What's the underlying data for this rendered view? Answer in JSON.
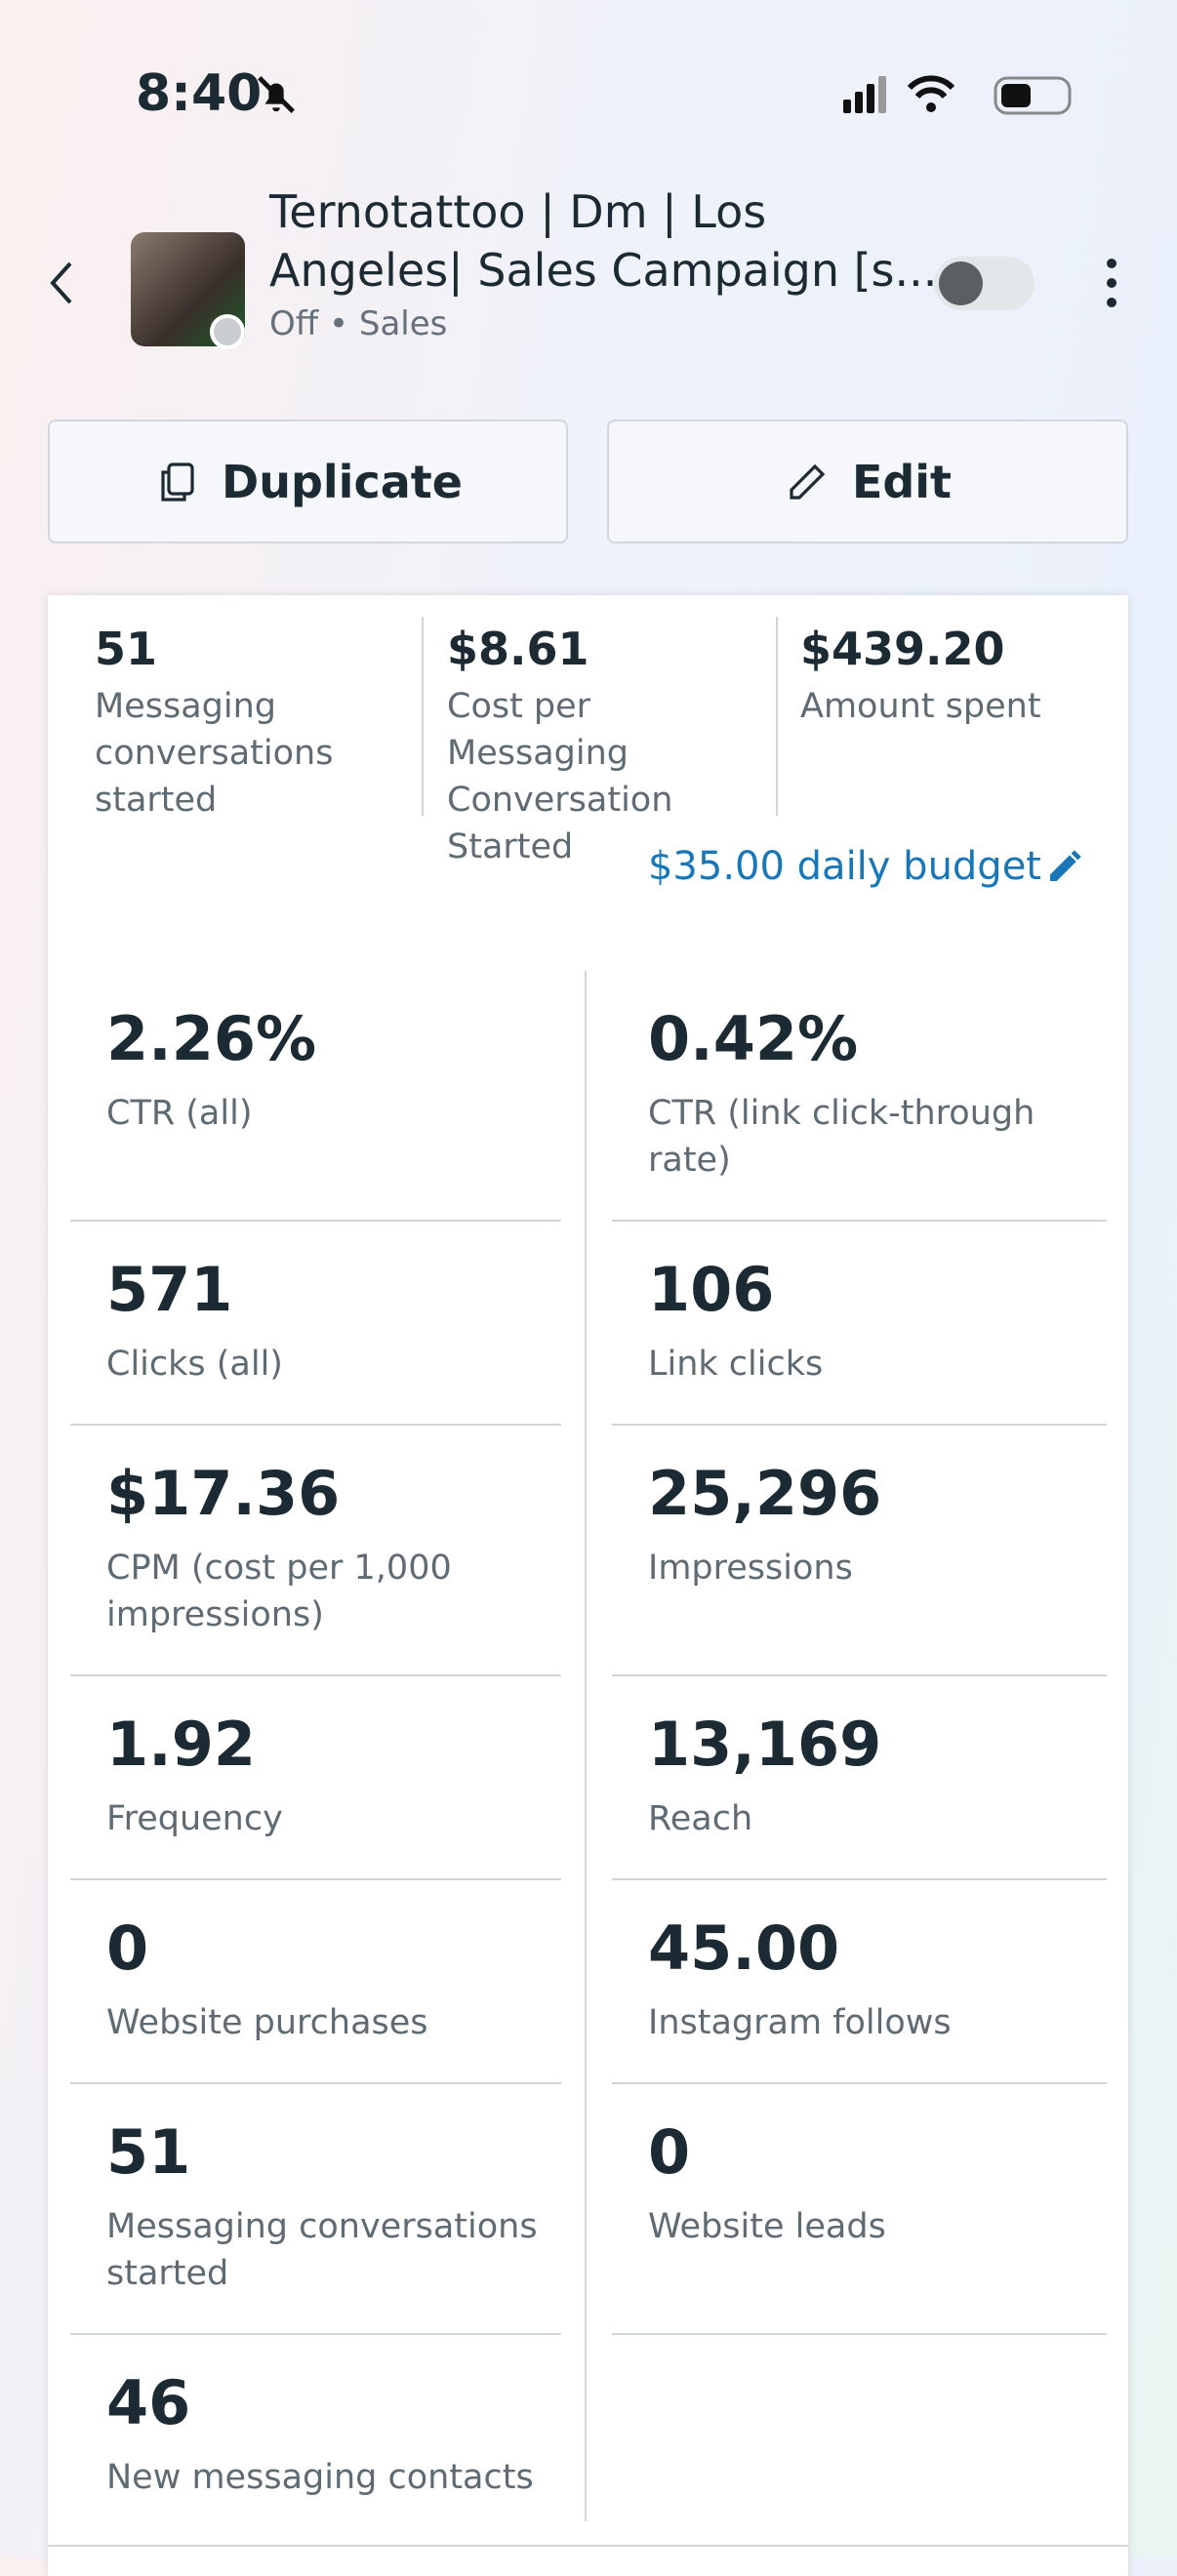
{
  "status_bar": {
    "time": "8:40"
  },
  "header": {
    "title_line1": "Ternotattoo | Dm |  Los",
    "title_line2": "Angeles| Sales Campaign [s...",
    "subtitle": "Off • Sales"
  },
  "buttons": {
    "duplicate": "Duplicate",
    "edit": "Edit"
  },
  "summary": [
    {
      "value": "51",
      "label": "Messaging conversations started"
    },
    {
      "value": "$8.61",
      "label": "Cost per Messaging Conversation Started"
    },
    {
      "value": "$439.20",
      "label": "Amount spent"
    }
  ],
  "budget": "$35.00 daily budget",
  "metrics": [
    [
      {
        "value": "2.26%",
        "label": "CTR (all)"
      },
      {
        "value": "0.42%",
        "label": "CTR (link click-through rate)"
      }
    ],
    [
      {
        "value": "571",
        "label": "Clicks (all)"
      },
      {
        "value": "106",
        "label": "Link clicks"
      }
    ],
    [
      {
        "value": "$17.36",
        "label": "CPM (cost per 1,000 impressions)"
      },
      {
        "value": "25,296",
        "label": "Impressions"
      }
    ],
    [
      {
        "value": "1.92",
        "label": "Frequency"
      },
      {
        "value": "13,169",
        "label": "Reach"
      }
    ],
    [
      {
        "value": "0",
        "label": "Website purchases"
      },
      {
        "value": "45.00",
        "label": "Instagram follows"
      }
    ],
    [
      {
        "value": "51",
        "label": "Messaging conversations started"
      },
      {
        "value": "0",
        "label": "Website leads"
      }
    ],
    [
      {
        "value": "46",
        "label": "New messaging contacts"
      }
    ]
  ]
}
